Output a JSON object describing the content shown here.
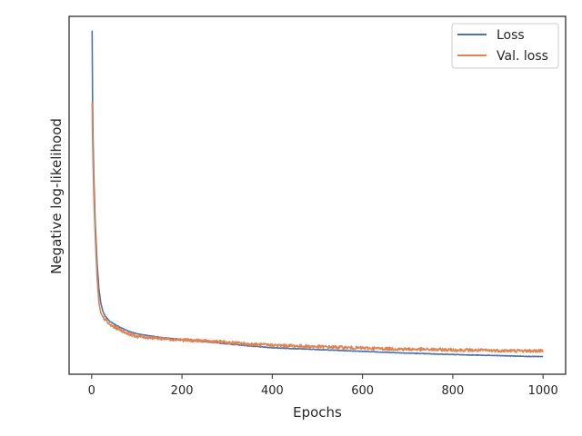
{
  "chart_data": {
    "type": "line",
    "xlabel": "Epochs",
    "ylabel": "Negative log-likelihood",
    "xlim": [
      -50,
      1050
    ],
    "ylim": [
      0.0,
      1.0
    ],
    "x_ticks": [
      0,
      200,
      400,
      600,
      800,
      1000
    ],
    "y_ticks_shown": false,
    "grid": false,
    "legend_position": "top-right",
    "series": [
      {
        "name": "Loss",
        "color": "#4c72b0",
        "points": [
          [
            1,
            0.96
          ],
          [
            2,
            0.76
          ],
          [
            3,
            0.66
          ],
          [
            5,
            0.54
          ],
          [
            8,
            0.42
          ],
          [
            12,
            0.31
          ],
          [
            16,
            0.24
          ],
          [
            20,
            0.2
          ],
          [
            25,
            0.175
          ],
          [
            30,
            0.162
          ],
          [
            40,
            0.148
          ],
          [
            50,
            0.14
          ],
          [
            60,
            0.133
          ],
          [
            80,
            0.121
          ],
          [
            100,
            0.113
          ],
          [
            150,
            0.103
          ],
          [
            200,
            0.097
          ],
          [
            250,
            0.091
          ],
          [
            300,
            0.085
          ],
          [
            350,
            0.079
          ],
          [
            400,
            0.074
          ],
          [
            500,
            0.069
          ],
          [
            600,
            0.064
          ],
          [
            700,
            0.059
          ],
          [
            800,
            0.055
          ],
          [
            900,
            0.052
          ],
          [
            1000,
            0.049
          ]
        ],
        "noise": 0.0008
      },
      {
        "name": "Val. loss",
        "color": "#dd8452",
        "points": [
          [
            1,
            0.76
          ],
          [
            2,
            0.66
          ],
          [
            3,
            0.59
          ],
          [
            5,
            0.49
          ],
          [
            8,
            0.38
          ],
          [
            12,
            0.27
          ],
          [
            16,
            0.2
          ],
          [
            20,
            0.172
          ],
          [
            25,
            0.16
          ],
          [
            30,
            0.152
          ],
          [
            40,
            0.138
          ],
          [
            50,
            0.132
          ],
          [
            60,
            0.126
          ],
          [
            80,
            0.114
          ],
          [
            100,
            0.106
          ],
          [
            150,
            0.1
          ],
          [
            200,
            0.096
          ],
          [
            250,
            0.093
          ],
          [
            300,
            0.089
          ],
          [
            350,
            0.084
          ],
          [
            400,
            0.081
          ],
          [
            500,
            0.077
          ],
          [
            600,
            0.073
          ],
          [
            700,
            0.07
          ],
          [
            800,
            0.068
          ],
          [
            900,
            0.066
          ],
          [
            1000,
            0.065
          ]
        ],
        "noise": 0.0045
      }
    ]
  }
}
